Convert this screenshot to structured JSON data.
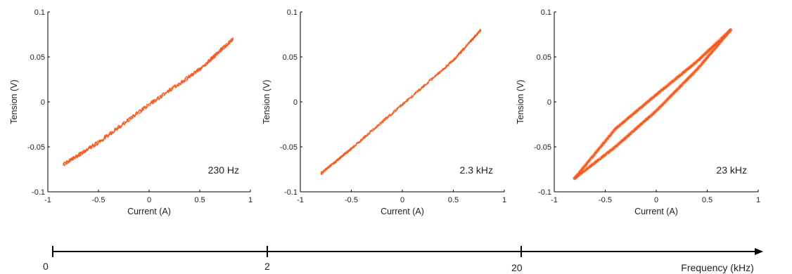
{
  "chart_data": [
    {
      "type": "line",
      "xlabel": "Current (A)",
      "ylabel": "Tension (V)",
      "xlim": [
        -1,
        1
      ],
      "ylim": [
        -0.1,
        0.1
      ],
      "xticks": [
        "-1",
        "-0.5",
        "0",
        "0.5",
        "1"
      ],
      "yticks": [
        "-0.1",
        "-0.05",
        "0",
        "0.05",
        "0.1"
      ],
      "annotation": "230 Hz",
      "color": "#f25a1e",
      "series": [
        {
          "x": [
            -0.85,
            -0.5,
            0,
            0.5,
            0.83
          ],
          "y": [
            -0.07,
            -0.045,
            -0.003,
            0.036,
            0.07
          ]
        }
      ]
    },
    {
      "type": "line",
      "xlabel": "Current (A)",
      "ylabel": "Tension (V)",
      "xlim": [
        -1,
        1
      ],
      "ylim": [
        -0.1,
        0.1
      ],
      "xticks": [
        "-1",
        "-0.5",
        "0",
        "0.5",
        "1"
      ],
      "yticks": [
        "-0.1",
        "-0.05",
        "0",
        "0.05",
        "0.1"
      ],
      "annotation": "2.3 kHz",
      "color": "#f25a1e",
      "series": [
        {
          "x": [
            -0.8,
            -0.5,
            0,
            0.5,
            0.77
          ],
          "y": [
            -0.08,
            -0.052,
            -0.003,
            0.046,
            0.08
          ]
        }
      ]
    },
    {
      "type": "line",
      "xlabel": "Current (A)",
      "ylabel": "Tension (V)",
      "xlim": [
        -1,
        1
      ],
      "ylim": [
        -0.1,
        0.1
      ],
      "xticks": [
        "-1",
        "-0.5",
        "0",
        "0.5",
        "1"
      ],
      "yticks": [
        "-0.1",
        "-0.05",
        "0",
        "0.05",
        "0.1"
      ],
      "annotation": "23 kHz",
      "color": "#f25a1e",
      "series": [
        {
          "x": [
            -0.8,
            -0.4,
            0,
            0.4,
            0.73
          ],
          "y": [
            -0.085,
            -0.05,
            -0.01,
            0.036,
            0.08
          ]
        },
        {
          "x": [
            0.73,
            0.4,
            0,
            -0.4,
            -0.8
          ],
          "y": [
            0.08,
            0.045,
            0.008,
            -0.03,
            -0.085
          ]
        }
      ]
    }
  ],
  "frequency_axis": {
    "label": "Frequency (kHz)",
    "ticks": [
      "0",
      "2",
      "20"
    ]
  }
}
